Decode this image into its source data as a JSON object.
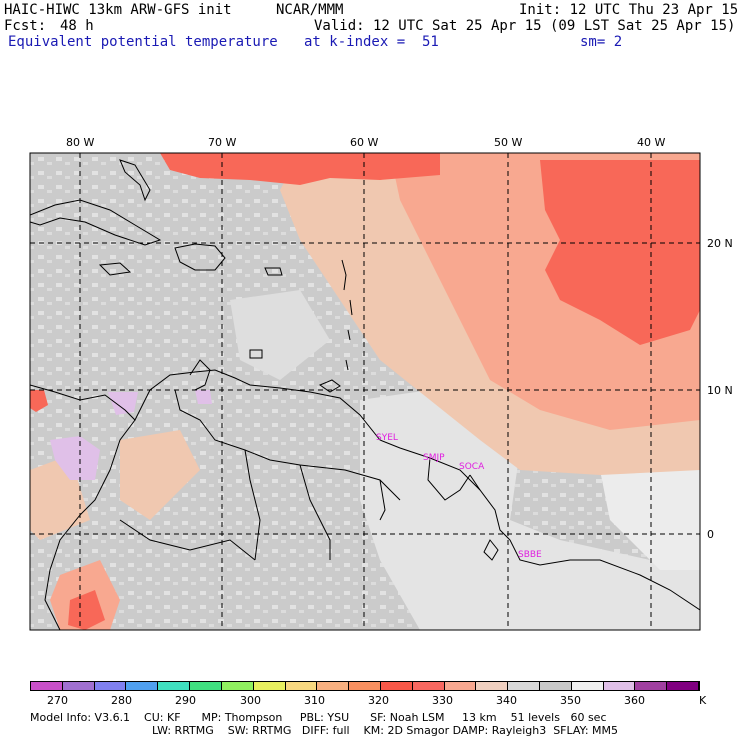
{
  "header": {
    "model": "HAIC-HIWC 13km ARW-GFS init",
    "org": "NCAR/MMM",
    "init": "Init: 12 UTC Thu 23 Apr 15",
    "fcst_label": "Fcst:",
    "fcst_value": "48 h",
    "valid": "Valid: 12 UTC Sat 25 Apr 15 (09 LST Sat 25 Apr 15)",
    "field": "Equivalent potential temperature",
    "level": "at k-index =  51",
    "smoothing": "sm= 2"
  },
  "map": {
    "lon_labels": [
      "80 W",
      "70 W",
      "60 W",
      "50 W",
      "40 W"
    ],
    "lat_labels": [
      "20 N",
      "10 N",
      "0"
    ],
    "stations": [
      "SYEL",
      "SMJP",
      "SOCA",
      "SBBE"
    ]
  },
  "colorbar": {
    "unit": "K",
    "tick_labels": [
      "270",
      "280",
      "290",
      "300",
      "310",
      "320",
      "330",
      "340",
      "350",
      "360"
    ],
    "colors": [
      "#c850c8",
      "#a070d0",
      "#8080f0",
      "#50a0f0",
      "#40e0c0",
      "#40e080",
      "#90f060",
      "#e8f060",
      "#f8d880",
      "#f8b080",
      "#f89060",
      "#f85848",
      "#f86860",
      "#f8a890",
      "#f0d0c0",
      "#d8d8d8",
      "#c8c8c8",
      "#f0f0f0",
      "#e0c0e8",
      "#a040a0",
      "#800080"
    ]
  },
  "footer": {
    "line1": "Model Info: V3.6.1    CU: KF      MP: Thompson     PBL: YSU      SF: Noah LSM     13 km    51 levels   60 sec",
    "line2": "LW: RRTMG    SW: RRTMG   DIFF: full    KM: 2D Smagor DAMP: Rayleigh3  SFLAY: MM5"
  }
}
